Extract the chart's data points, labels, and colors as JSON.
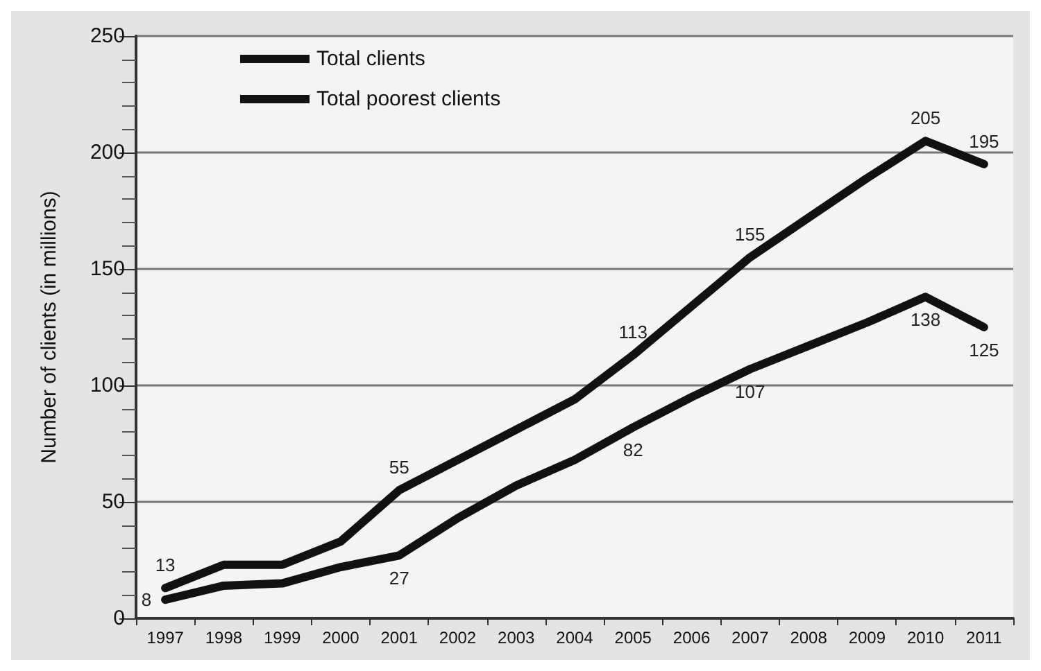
{
  "chart_data": {
    "type": "line",
    "ylabel": "Number of clients (in millions)",
    "categories": [
      "1997",
      "1998",
      "1999",
      "2000",
      "2001",
      "2002",
      "2003",
      "2004",
      "2005",
      "2006",
      "2007",
      "2008",
      "2009",
      "2010",
      "2011"
    ],
    "series": [
      {
        "name": "Total clients",
        "color": "#111111",
        "values": [
          13,
          23,
          23,
          33,
          55,
          68,
          81,
          94,
          113,
          134,
          155,
          172,
          189,
          205,
          195
        ],
        "value_labels": [
          "13",
          null,
          null,
          null,
          "55",
          null,
          null,
          null,
          "113",
          null,
          "155",
          null,
          null,
          "205",
          "195"
        ]
      },
      {
        "name": "Total poorest clients",
        "color": "#111111",
        "values": [
          8,
          14,
          15,
          22,
          27,
          43,
          57,
          68,
          82,
          95,
          107,
          117,
          127,
          138,
          125
        ],
        "value_labels": [
          "8",
          null,
          null,
          null,
          "27",
          null,
          null,
          null,
          "82",
          null,
          "107",
          null,
          null,
          "138",
          "125"
        ]
      }
    ],
    "ylim": [
      0,
      250
    ],
    "yticks": [
      0,
      50,
      100,
      150,
      200,
      250
    ],
    "grid": "y",
    "legend": "top left",
    "marker": "none",
    "line_style": "solid"
  }
}
